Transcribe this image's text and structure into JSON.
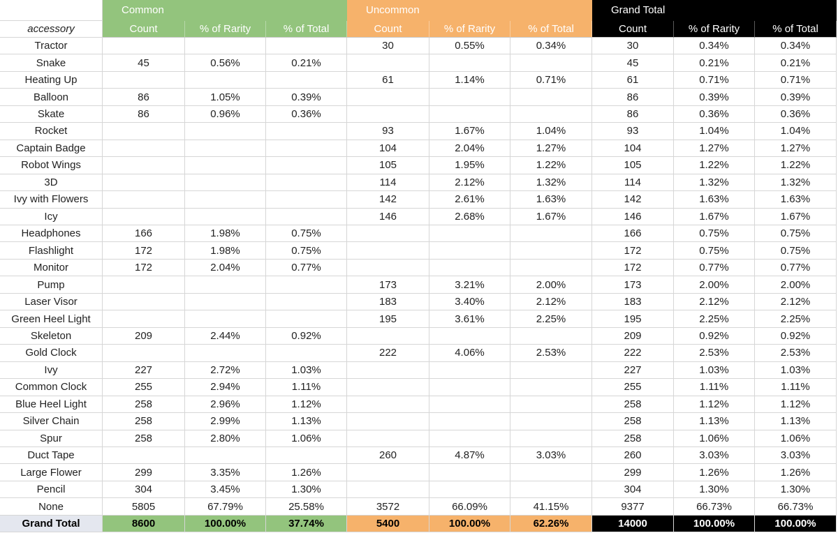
{
  "table": {
    "groups": [
      "Common",
      "Uncommon",
      "Grand Total"
    ],
    "columns": [
      "accessory",
      "Count",
      "% of Rarity",
      "% of Total",
      "Count",
      "% of Rarity",
      "% of Total",
      "Count",
      "% of Rarity",
      "% of Total"
    ],
    "rows": [
      [
        "Tractor",
        null,
        null,
        null,
        "30",
        "0.55%",
        "0.34%",
        "30",
        "0.34%",
        "0.34%"
      ],
      [
        "Snake",
        "45",
        "0.56%",
        "0.21%",
        null,
        null,
        null,
        "45",
        "0.21%",
        "0.21%"
      ],
      [
        "Heating Up",
        null,
        null,
        null,
        "61",
        "1.14%",
        "0.71%",
        "61",
        "0.71%",
        "0.71%"
      ],
      [
        "Balloon",
        "86",
        "1.05%",
        "0.39%",
        null,
        null,
        null,
        "86",
        "0.39%",
        "0.39%"
      ],
      [
        "Skate",
        "86",
        "0.96%",
        "0.36%",
        null,
        null,
        null,
        "86",
        "0.36%",
        "0.36%"
      ],
      [
        "Rocket",
        null,
        null,
        null,
        "93",
        "1.67%",
        "1.04%",
        "93",
        "1.04%",
        "1.04%"
      ],
      [
        "Captain Badge",
        null,
        null,
        null,
        "104",
        "2.04%",
        "1.27%",
        "104",
        "1.27%",
        "1.27%"
      ],
      [
        "Robot Wings",
        null,
        null,
        null,
        "105",
        "1.95%",
        "1.22%",
        "105",
        "1.22%",
        "1.22%"
      ],
      [
        "3D",
        null,
        null,
        null,
        "114",
        "2.12%",
        "1.32%",
        "114",
        "1.32%",
        "1.32%"
      ],
      [
        "Ivy with Flowers",
        null,
        null,
        null,
        "142",
        "2.61%",
        "1.63%",
        "142",
        "1.63%",
        "1.63%"
      ],
      [
        "Icy",
        null,
        null,
        null,
        "146",
        "2.68%",
        "1.67%",
        "146",
        "1.67%",
        "1.67%"
      ],
      [
        "Headphones",
        "166",
        "1.98%",
        "0.75%",
        null,
        null,
        null,
        "166",
        "0.75%",
        "0.75%"
      ],
      [
        "Flashlight",
        "172",
        "1.98%",
        "0.75%",
        null,
        null,
        null,
        "172",
        "0.75%",
        "0.75%"
      ],
      [
        "Monitor",
        "172",
        "2.04%",
        "0.77%",
        null,
        null,
        null,
        "172",
        "0.77%",
        "0.77%"
      ],
      [
        "Pump",
        null,
        null,
        null,
        "173",
        "3.21%",
        "2.00%",
        "173",
        "2.00%",
        "2.00%"
      ],
      [
        "Laser Visor",
        null,
        null,
        null,
        "183",
        "3.40%",
        "2.12%",
        "183",
        "2.12%",
        "2.12%"
      ],
      [
        "Green Heel Light",
        null,
        null,
        null,
        "195",
        "3.61%",
        "2.25%",
        "195",
        "2.25%",
        "2.25%"
      ],
      [
        "Skeleton",
        "209",
        "2.44%",
        "0.92%",
        null,
        null,
        null,
        "209",
        "0.92%",
        "0.92%"
      ],
      [
        "Gold Clock",
        null,
        null,
        null,
        "222",
        "4.06%",
        "2.53%",
        "222",
        "2.53%",
        "2.53%"
      ],
      [
        "Ivy",
        "227",
        "2.72%",
        "1.03%",
        null,
        null,
        null,
        "227",
        "1.03%",
        "1.03%"
      ],
      [
        "Common Clock",
        "255",
        "2.94%",
        "1.11%",
        null,
        null,
        null,
        "255",
        "1.11%",
        "1.11%"
      ],
      [
        "Blue Heel Light",
        "258",
        "2.96%",
        "1.12%",
        null,
        null,
        null,
        "258",
        "1.12%",
        "1.12%"
      ],
      [
        "Silver Chain",
        "258",
        "2.99%",
        "1.13%",
        null,
        null,
        null,
        "258",
        "1.13%",
        "1.13%"
      ],
      [
        "Spur",
        "258",
        "2.80%",
        "1.06%",
        null,
        null,
        null,
        "258",
        "1.06%",
        "1.06%"
      ],
      [
        "Duct Tape",
        null,
        null,
        null,
        "260",
        "4.87%",
        "3.03%",
        "260",
        "3.03%",
        "3.03%"
      ],
      [
        "Large Flower",
        "299",
        "3.35%",
        "1.26%",
        null,
        null,
        null,
        "299",
        "1.26%",
        "1.26%"
      ],
      [
        "Pencil",
        "304",
        "3.45%",
        "1.30%",
        null,
        null,
        null,
        "304",
        "1.30%",
        "1.30%"
      ],
      [
        "None",
        "5805",
        "67.79%",
        "25.58%",
        "3572",
        "66.09%",
        "41.15%",
        "9377",
        "66.73%",
        "66.73%"
      ]
    ],
    "total": [
      "Grand Total",
      "8600",
      "100.00%",
      "37.74%",
      "5400",
      "100.00%",
      "62.26%",
      "14000",
      "100.00%",
      "100.00%"
    ]
  }
}
